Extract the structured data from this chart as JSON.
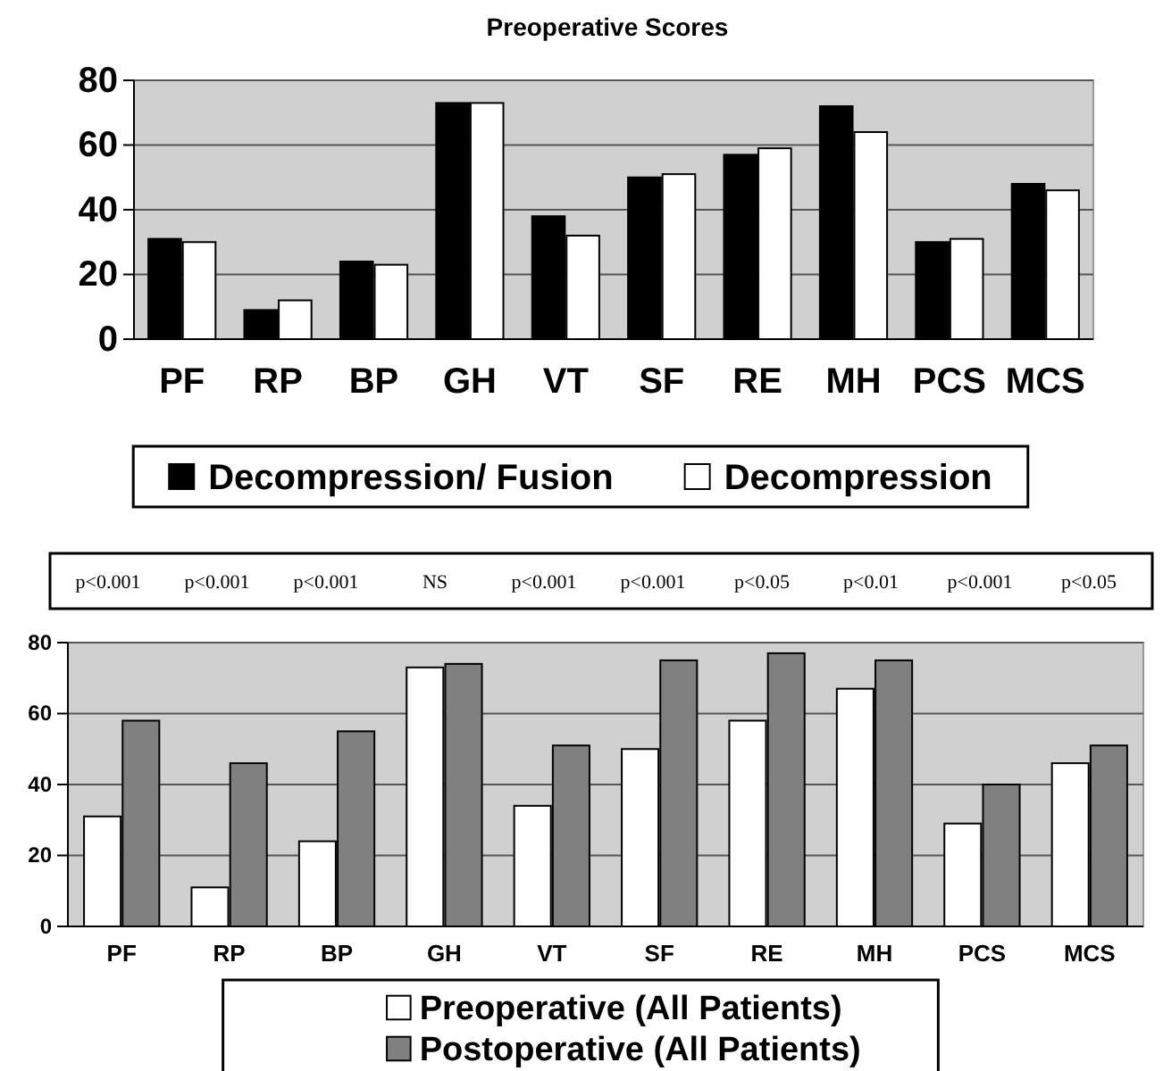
{
  "chart_data": [
    {
      "type": "bar",
      "title": "Preoperative Scores",
      "categories": [
        "PF",
        "RP",
        "BP",
        "GH",
        "VT",
        "SF",
        "RE",
        "MH",
        "PCS",
        "MCS"
      ],
      "series": [
        {
          "name": "Decompression/ Fusion",
          "color": "#000000",
          "values": [
            31,
            9,
            24,
            73,
            38,
            50,
            57,
            72,
            30,
            48
          ]
        },
        {
          "name": "Decompression",
          "color": "#ffffff",
          "values": [
            30,
            12,
            23,
            73,
            32,
            51,
            59,
            64,
            31,
            46
          ]
        }
      ],
      "ylim": [
        0,
        80
      ],
      "yticks": [
        0,
        20,
        40,
        60,
        80
      ],
      "grid": "y",
      "legend": "bottom"
    },
    {
      "type": "bar",
      "categories": [
        "PF",
        "RP",
        "BP",
        "GH",
        "VT",
        "SF",
        "RE",
        "MH",
        "PCS",
        "MCS"
      ],
      "series": [
        {
          "name": "Preoperative (All Patients)",
          "color": "#ffffff",
          "values": [
            31,
            11,
            24,
            73,
            34,
            50,
            58,
            67,
            29,
            46
          ]
        },
        {
          "name": "Postoperative (All Patients)",
          "color": "#808080",
          "values": [
            58,
            46,
            55,
            74,
            51,
            75,
            77,
            75,
            40,
            51
          ]
        }
      ],
      "annotations": [
        "p<0.001",
        "p<0.001",
        "p<0.001",
        "NS",
        "p<0.001",
        "p<0.001",
        "p<0.05",
        "p<0.01",
        "p<0.001",
        "p<0.05"
      ],
      "ylim": [
        0,
        80
      ],
      "yticks": [
        0,
        20,
        40,
        60,
        80
      ],
      "grid": "y",
      "legend": "bottom"
    }
  ]
}
